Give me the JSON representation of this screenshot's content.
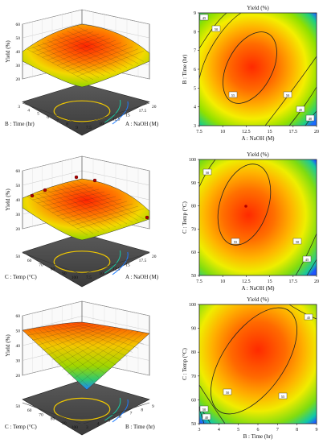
{
  "chart_data": [
    {
      "type": "surface3d",
      "zlabel": "Yield (%)",
      "xlabel": "A : NaOH (M)",
      "ylabel": "B : Time (hr)",
      "zticks": [
        "20",
        "30",
        "40",
        "50",
        "60"
      ],
      "xticks": [
        "7.5",
        "10",
        "12.5",
        "15",
        "17.5",
        "20"
      ],
      "yticks": [
        "3",
        "4",
        "5",
        "6",
        "7",
        "8",
        "9"
      ],
      "zlim": [
        20,
        60
      ]
    },
    {
      "type": "contour",
      "title": "Yield (%)",
      "xlabel": "A : NaOH (M)",
      "ylabel": "B : Time (hr)",
      "xticks": [
        "7.5",
        "10",
        "12.5",
        "15",
        "17.5",
        "20"
      ],
      "yticks": [
        "3",
        "4",
        "5",
        "6",
        "7",
        "8",
        "9"
      ],
      "xlim": [
        7.5,
        20
      ],
      "ylim": [
        3,
        9
      ],
      "contour_labels": [
        "45",
        "50",
        "55",
        "50",
        "45",
        "40"
      ]
    },
    {
      "type": "surface3d",
      "zlabel": "Yield (%)",
      "xlabel": "A : NaOH (M)",
      "ylabel": "C : Temp (°C)",
      "zticks": [
        "20",
        "30",
        "40",
        "50",
        "60"
      ],
      "xticks": [
        "7.5",
        "10",
        "12.5",
        "15",
        "17.5",
        "20"
      ],
      "yticks": [
        "50",
        "60",
        "70",
        "80",
        "90",
        "100"
      ],
      "zlim": [
        20,
        60
      ]
    },
    {
      "type": "contour",
      "title": "Yield (%)",
      "xlabel": "A : NaOH (M)",
      "ylabel": "C : Temp (°C)",
      "xticks": [
        "7.5",
        "10",
        "12.5",
        "15",
        "17.5",
        "20"
      ],
      "yticks": [
        "50",
        "60",
        "70",
        "80",
        "90",
        "100"
      ],
      "xlim": [
        7.5,
        20
      ],
      "ylim": [
        50,
        100
      ],
      "contour_labels": [
        "50",
        "55",
        "50",
        "45"
      ]
    },
    {
      "type": "surface3d",
      "zlabel": "Yield (%)",
      "xlabel": "B : Time (hr)",
      "ylabel": "C : Temp (°C)",
      "zticks": [
        "20",
        "30",
        "40",
        "50",
        "60"
      ],
      "xticks": [
        "3",
        "4",
        "5",
        "6",
        "7",
        "8",
        "9"
      ],
      "yticks": [
        "50",
        "60",
        "70",
        "80",
        "90",
        "100"
      ],
      "zlim": [
        20,
        60
      ]
    },
    {
      "type": "contour",
      "title": "Yield (%)",
      "xlabel": "B : Time (hr)",
      "ylabel": "C : Temp (°C)",
      "xticks": [
        "3",
        "4",
        "5",
        "6",
        "7",
        "8",
        "9"
      ],
      "yticks": [
        "50",
        "60",
        "70",
        "80",
        "90",
        "100"
      ],
      "xlim": [
        3,
        9
      ],
      "ylim": [
        50,
        100
      ],
      "contour_labels": [
        "50",
        "50",
        "55",
        "45",
        "40"
      ]
    }
  ]
}
